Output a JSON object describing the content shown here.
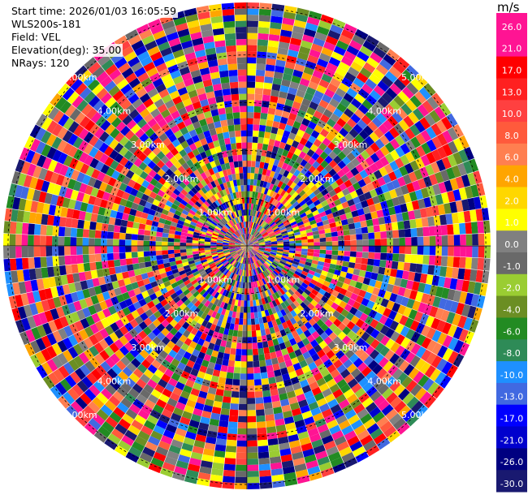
{
  "header": {
    "start_time": "Start time: 2026/01/03 16:05:59",
    "instrument": "WLS200s-181",
    "field": "Field: VEL",
    "elevation": "Elevation(deg): 35.00",
    "nrays": "NRays: 120"
  },
  "chart_data": {
    "type": "heatmap",
    "projection": "polar PPI",
    "field": "VEL",
    "nrays": 120,
    "range_rings_km": [
      "1.00km",
      "2.00km",
      "3.00km",
      "4.00km",
      "5.00km"
    ],
    "colorbar": {
      "unit": "m/s",
      "ticks": [
        "26.0",
        "21.0",
        "17.0",
        "13.0",
        "10.0",
        "8.0",
        "6.0",
        "4.0",
        "2.0",
        "1.0",
        "0.0",
        "-1.0",
        "-2.0",
        "-4.0",
        "-6.0",
        "-8.0",
        "-10.0",
        "-13.0",
        "-17.0",
        "-21.0",
        "-26.0",
        "-30.0"
      ],
      "colors": [
        "#ff1493",
        "#ff1493",
        "#ff0000",
        "#ff2020",
        "#ff4040",
        "#ff5a3c",
        "#ff7f50",
        "#ffa500",
        "#ffd700",
        "#ffff00",
        "#808080",
        "#696969",
        "#9acd32",
        "#6b8e23",
        "#228b22",
        "#2e8b57",
        "#1e90ff",
        "#4169e1",
        "#0000ff",
        "#0000cd",
        "#000080",
        "#191970"
      ]
    }
  }
}
